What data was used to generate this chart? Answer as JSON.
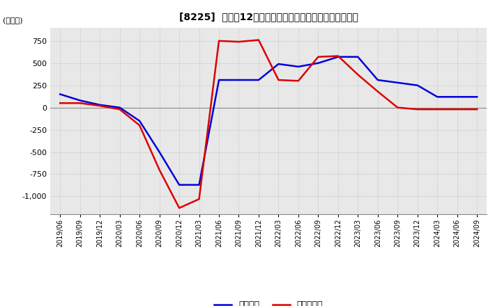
{
  "title": "[8225]  利益の12か月移動合計の対前年同期増減額の推移",
  "ylabel": "(百万円)",
  "ylim": [
    -1200,
    900
  ],
  "yticks": [
    -1000,
    -750,
    -500,
    -250,
    0,
    250,
    500,
    750
  ],
  "legend_labels": [
    "経常利益",
    "当期純利益"
  ],
  "line_colors": [
    "#0000dd",
    "#dd0000"
  ],
  "background_color": "#ffffff",
  "plot_bg_color": "#e8e8e8",
  "dates": [
    "2019/06",
    "2019/09",
    "2019/12",
    "2020/03",
    "2020/06",
    "2020/09",
    "2020/12",
    "2021/03",
    "2021/06",
    "2021/09",
    "2021/12",
    "2022/03",
    "2022/06",
    "2022/09",
    "2022/12",
    "2023/03",
    "2023/06",
    "2023/09",
    "2023/12",
    "2024/03",
    "2024/06",
    "2024/09"
  ],
  "keijo_rieki": [
    150,
    80,
    30,
    0,
    -150,
    -500,
    -870,
    -870,
    310,
    310,
    310,
    490,
    460,
    500,
    570,
    570,
    310,
    280,
    250,
    120,
    120,
    120
  ],
  "touki_junrieki": [
    50,
    50,
    20,
    -20,
    -200,
    -700,
    -1130,
    -1030,
    750,
    740,
    760,
    310,
    300,
    570,
    580,
    370,
    180,
    0,
    -20,
    -20,
    -20,
    -20
  ]
}
